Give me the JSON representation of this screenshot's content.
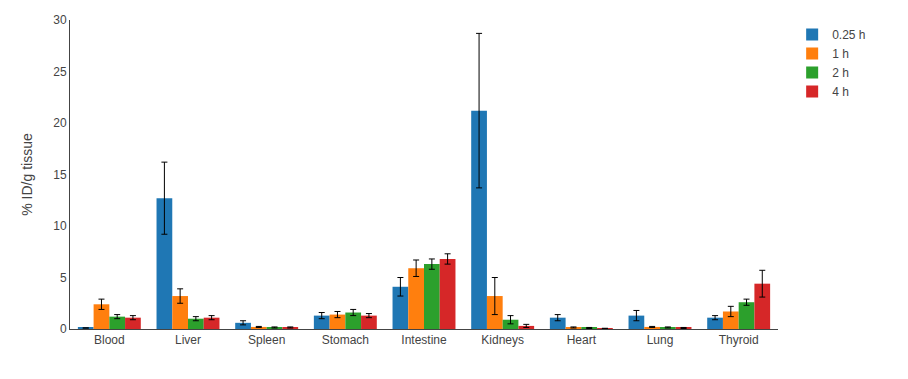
{
  "chart_data": {
    "type": "bar",
    "categories": [
      "Blood",
      "Liver",
      "Spleen",
      "Stomach",
      "Intestine",
      "Kidneys",
      "Heart",
      "Lung",
      "Thyroid"
    ],
    "ylabel": "% ID/g tissue",
    "ylim": [
      0,
      30
    ],
    "yticks": [
      0,
      5,
      10,
      15,
      20,
      25,
      30
    ],
    "grid": false,
    "legend": "right",
    "series": [
      {
        "name": "0.25 h",
        "values": [
          0.1,
          12.7,
          0.6,
          1.3,
          4.1,
          21.2,
          1.1,
          1.3,
          1.1
        ],
        "errors": [
          0.0,
          3.5,
          0.2,
          0.3,
          0.9,
          7.5,
          0.3,
          0.5,
          0.2
        ]
      },
      {
        "name": "1 h",
        "values": [
          2.4,
          3.2,
          0.2,
          1.4,
          5.9,
          3.2,
          0.15,
          0.2,
          1.7
        ],
        "errors": [
          0.5,
          0.7,
          0.05,
          0.3,
          0.8,
          1.8,
          0.05,
          0.05,
          0.5
        ]
      },
      {
        "name": "2 h",
        "values": [
          1.2,
          1.0,
          0.15,
          1.6,
          6.3,
          0.9,
          0.1,
          0.15,
          2.6
        ],
        "errors": [
          0.2,
          0.2,
          0.05,
          0.3,
          0.5,
          0.4,
          0.05,
          0.05,
          0.3
        ]
      },
      {
        "name": "4 h",
        "values": [
          1.1,
          1.1,
          0.15,
          1.3,
          6.8,
          0.3,
          0.05,
          0.1,
          4.4
        ],
        "errors": [
          0.2,
          0.2,
          0.05,
          0.2,
          0.5,
          0.15,
          0.02,
          0.05,
          1.3
        ]
      }
    ]
  }
}
